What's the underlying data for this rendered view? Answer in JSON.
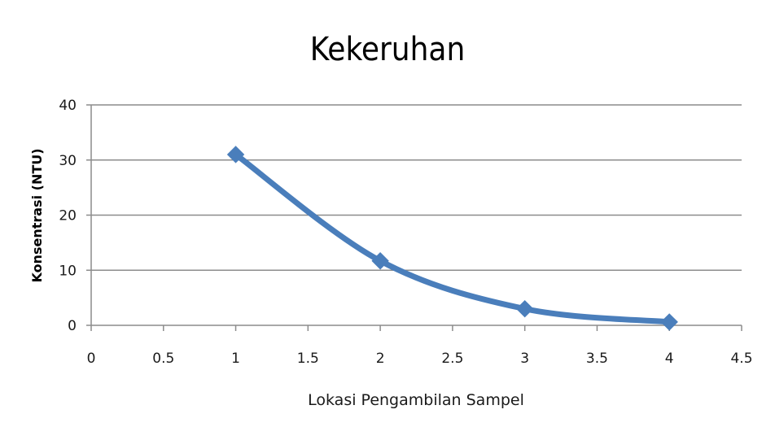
{
  "chart_data": {
    "type": "line",
    "title": "Kekeruhan",
    "xlabel": "Lokasi Pengambilan  Sampel",
    "ylabel": "Konsentrasi (NTU)",
    "xlim": [
      0,
      4.5
    ],
    "ylim": [
      0,
      40
    ],
    "xticks": [
      "0",
      "0.5",
      "1",
      "1.5",
      "2",
      "2.5",
      "3",
      "3.5",
      "4",
      "4.5"
    ],
    "yticks": [
      "0",
      "10",
      "20",
      "30",
      "40"
    ],
    "grid": "horizontal",
    "smooth": true,
    "marker": "diamond",
    "color": "#4a7ebb",
    "series": [
      {
        "x": [
          1,
          2,
          3,
          4
        ],
        "y": [
          31,
          11.7,
          3,
          0.6
        ]
      }
    ]
  }
}
